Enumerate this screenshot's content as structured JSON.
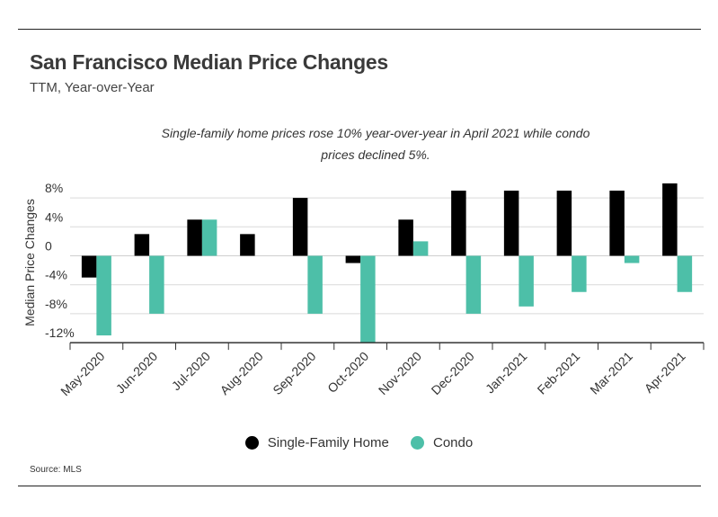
{
  "header": {
    "title": "San Francisco Median Price Changes",
    "subtitle": "TTM, Year-over-Year",
    "annotation": "Single-family home prices rose 10% year-over-year in April 2021 while condo prices declined 5%."
  },
  "footer": {
    "source": "Source:  MLS"
  },
  "colors": {
    "single_family": "#000000",
    "condo": "#4dbfa8",
    "gridline": "#d9d9d9",
    "axis": "#333333"
  },
  "chart_data": {
    "type": "bar",
    "title": "San Francisco Median Price Changes",
    "subtitle": "TTM, Year-over-Year",
    "xlabel": "",
    "ylabel": "Median Price Changes",
    "ylim": [
      -12,
      8
    ],
    "yticks": [
      8,
      4,
      0,
      -4,
      -8,
      -12
    ],
    "ytick_labels": [
      "8%",
      "4%",
      "0",
      "-4%",
      "-8%",
      "-12%"
    ],
    "grid": true,
    "legend_position": "bottom",
    "categories": [
      "May-2020",
      "Jun-2020",
      "Jul-2020",
      "Aug-2020",
      "Sep-2020",
      "Oct-2020",
      "Nov-2020",
      "Dec-2020",
      "Jan-2021",
      "Feb-2021",
      "Mar-2021",
      "Apr-2021"
    ],
    "series": [
      {
        "name": "Single-Family Home",
        "values": [
          -3,
          3,
          5,
          3,
          8,
          -1,
          5,
          9,
          9,
          9,
          9,
          10
        ]
      },
      {
        "name": "Condo",
        "values": [
          -11,
          -8,
          5,
          0,
          -8,
          -12,
          2,
          -8,
          -7,
          -5,
          -1,
          -5
        ]
      }
    ]
  }
}
